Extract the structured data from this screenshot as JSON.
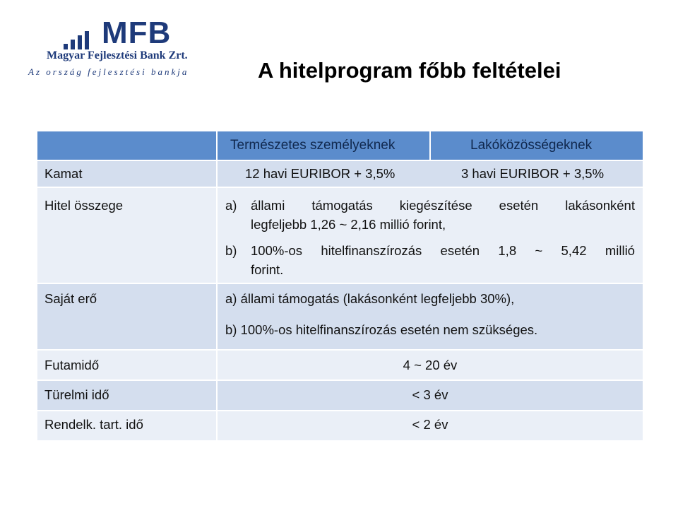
{
  "logo": {
    "name": "MFB",
    "bank_name": "Magyar Fejlesztési Bank Zrt.",
    "slogan": "Az ország fejlesztési bankja",
    "color": "#1e3a7a"
  },
  "title": "A hitelprogram főbb feltételei",
  "table": {
    "header": {
      "col1": "Természetes személyeknek",
      "col2": "Lakóközösségeknek",
      "color": "#5b8ccc"
    },
    "kamat": {
      "label": "Kamat",
      "col1": "12 havi EURIBOR + 3,5%",
      "col2": "3 havi EURIBOR + 3,5%"
    },
    "hitel": {
      "label": "Hitel összege",
      "a_marker": "a)",
      "a_words": [
        "állami",
        "támogatás",
        "kiegészítése",
        "esetén",
        "lakásonként"
      ],
      "a_line2": "legfeljebb 1,26 ~ 2,16 millió forint,",
      "b_marker": "b)",
      "b_words": [
        "100%-os",
        "hitelfinanszírozás",
        "esetén",
        "1,8",
        "~",
        "5,42",
        "millió"
      ],
      "b_line2": "forint."
    },
    "sajat": {
      "label": "Saját erő",
      "a": "a)  állami támogatás (lakásonként legfeljebb 30%),",
      "b": "b)  100%-os hitelfinanszírozás esetén nem szükséges."
    },
    "futamido": {
      "label": "Futamidő",
      "value": "4 ~ 20 év"
    },
    "turelmi": {
      "label": "Türelmi idő",
      "value": "< 3 év"
    },
    "rendelk": {
      "label": "Rendelk. tart. idő",
      "value": "< 2 év"
    }
  }
}
